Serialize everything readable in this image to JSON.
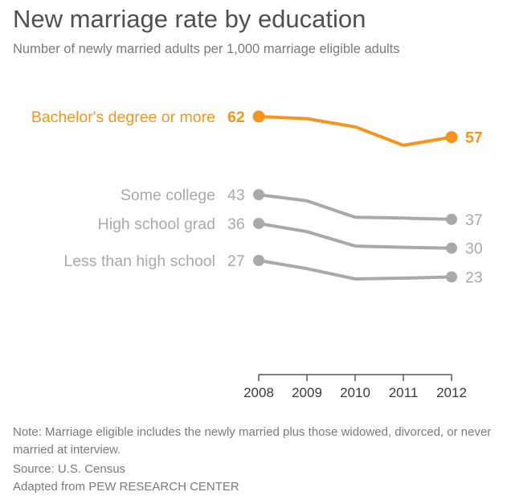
{
  "chart_data": {
    "type": "line",
    "title": "New marriage rate by education",
    "subtitle": "Number of newly married adults per 1,000 marriage eligible adults",
    "x": [
      "2008",
      "2009",
      "2010",
      "2011",
      "2012"
    ],
    "ylim": [
      0,
      70
    ],
    "xlabel": "",
    "ylabel": "",
    "grid": false,
    "series": [
      {
        "name": "Bachelor's degree or more",
        "values": [
          62,
          61.5,
          59.5,
          55,
          57
        ],
        "start_label": "62",
        "end_label": "57",
        "color": "#f7941d",
        "highlight": true
      },
      {
        "name": "Some college",
        "values": [
          43,
          41.5,
          37.5,
          37.3,
          37
        ],
        "start_label": "43",
        "end_label": "37",
        "color": "#a9a9a9",
        "highlight": false
      },
      {
        "name": "High school grad",
        "values": [
          36,
          34,
          30.5,
          30.2,
          30
        ],
        "start_label": "36",
        "end_label": "30",
        "color": "#a9a9a9",
        "highlight": false
      },
      {
        "name": "Less than high school",
        "values": [
          27,
          25,
          22.5,
          22.7,
          23
        ],
        "start_label": "27",
        "end_label": "23",
        "color": "#a9a9a9",
        "highlight": false
      }
    ]
  },
  "notes": {
    "note": "Note: Marriage eligible includes the newly married plus those widowed, divorced, or never married at interview.",
    "source": "Source: U.S. Census",
    "credit": "Adapted from PEW RESEARCH CENTER"
  },
  "colors": {
    "highlight": "#f7941d",
    "muted_line": "#a9a9a9",
    "muted_text": "#a9a9a9",
    "axis": "#555555",
    "axis_text": "#3a3a3a",
    "title_text": "#505050",
    "sub_text": "#7a7a7a"
  }
}
